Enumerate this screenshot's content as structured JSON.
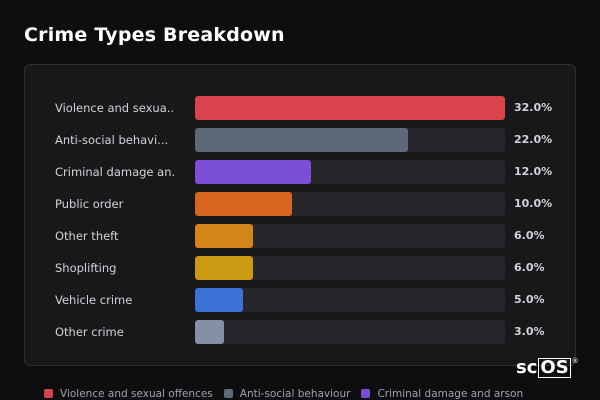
{
  "page": {
    "title": "Crime Types Breakdown",
    "watermark": {
      "pre": "sc",
      "boxed": "OS",
      "mark": "®"
    }
  },
  "chart_data": {
    "type": "bar",
    "orientation": "horizontal",
    "xlim": [
      0,
      32
    ],
    "categories": [
      "Violence and sexua...",
      "Anti-social behavi...",
      "Criminal damage an...",
      "Public order",
      "Other theft",
      "Shoplifting",
      "Vehicle crime",
      "Other crime"
    ],
    "values": [
      32.0,
      22.0,
      12.0,
      10.0,
      6.0,
      6.0,
      5.0,
      3.0
    ],
    "value_labels": [
      "32.0%",
      "22.0%",
      "12.0%",
      "10.0%",
      "6.0%",
      "6.0%",
      "5.0%",
      "3.0%"
    ],
    "colors": [
      "#d9434b",
      "#5d6878",
      "#7a4fd6",
      "#d9661f",
      "#d38617",
      "#cc9a12",
      "#3a72d6",
      "#8490a3"
    ],
    "legend": {
      "placement": "bottom",
      "entries": [
        {
          "name": "Violence and sexual offences",
          "color": "#d9434b"
        },
        {
          "name": "Anti-social behaviour",
          "color": "#5d6878"
        },
        {
          "name": "Criminal damage and arson",
          "color": "#7a4fd6"
        }
      ]
    },
    "grid": false
  }
}
